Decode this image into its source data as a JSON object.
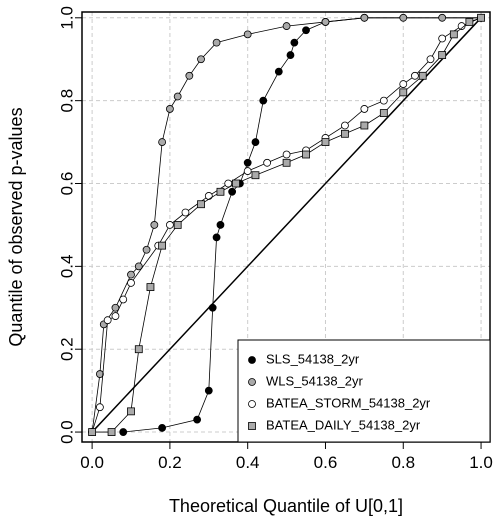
{
  "chart_data": {
    "type": "line",
    "x_label": "Theoretical Quantile of U[0,1]",
    "y_label": "Quantile of observed p-values",
    "xlim": [
      -0.026,
      1.023
    ],
    "ylim": [
      -0.024,
      1.014
    ],
    "xticks": [
      {
        "value": 0,
        "label": "0.0"
      },
      0.2,
      0.4,
      0.6,
      0.8,
      {
        "value": 1,
        "label": "1.0"
      }
    ],
    "yticks": [
      {
        "value": 0,
        "label": "0.0"
      },
      0.2,
      0.4,
      0.6,
      0.8,
      {
        "value": 1,
        "label": "1.0"
      }
    ],
    "grid": true,
    "legend": "bottom-right",
    "reference_line": {
      "x": [
        0,
        1
      ],
      "y": [
        0,
        1
      ]
    },
    "series": [
      {
        "name": "SLS_54138_2yr",
        "color": "#000000",
        "marker": "circle",
        "x": [
          0.08,
          0.18,
          0.27,
          0.3,
          0.31,
          0.32,
          0.33,
          0.36,
          0.38,
          0.4,
          0.42,
          0.44,
          0.48,
          0.51,
          0.52,
          0.55,
          0.6,
          0.7,
          1.0
        ],
        "y": [
          0,
          0.01,
          0.03,
          0.1,
          0.3,
          0.47,
          0.5,
          0.58,
          0.6,
          0.65,
          0.7,
          0.8,
          0.87,
          0.91,
          0.94,
          0.97,
          0.99,
          1.0,
          1.0
        ]
      },
      {
        "name": "WLS_54138_2yr",
        "color": "#aaaaaa",
        "marker": "circle",
        "x": [
          0,
          0.02,
          0.03,
          0.06,
          0.1,
          0.12,
          0.14,
          0.16,
          0.18,
          0.2,
          0.22,
          0.25,
          0.28,
          0.32,
          0.4,
          0.5,
          0.6,
          0.7,
          0.8,
          0.9,
          1.0
        ],
        "y": [
          0,
          0.14,
          0.26,
          0.3,
          0.38,
          0.4,
          0.44,
          0.5,
          0.7,
          0.78,
          0.81,
          0.86,
          0.9,
          0.94,
          0.96,
          0.98,
          0.99,
          1.0,
          1.0,
          1.0,
          1.0
        ]
      },
      {
        "name": "BATEA_STORM_54138_2yr",
        "color": "#ffffff",
        "marker": "circle",
        "x": [
          0,
          0.02,
          0.04,
          0.06,
          0.08,
          0.1,
          0.17,
          0.2,
          0.24,
          0.3,
          0.35,
          0.4,
          0.45,
          0.5,
          0.55,
          0.6,
          0.65,
          0.7,
          0.75,
          0.8,
          0.83,
          0.87,
          0.9,
          0.95,
          1.0
        ],
        "y": [
          0,
          0.06,
          0.27,
          0.28,
          0.32,
          0.36,
          0.45,
          0.5,
          0.53,
          0.57,
          0.6,
          0.63,
          0.65,
          0.67,
          0.68,
          0.71,
          0.74,
          0.78,
          0.8,
          0.84,
          0.86,
          0.9,
          0.95,
          0.98,
          1.0
        ]
      },
      {
        "name": "BATEA_DAILY_54138_2yr",
        "color": "#aaaaaa",
        "marker": "square",
        "x": [
          0,
          0.05,
          0.1,
          0.12,
          0.15,
          0.18,
          0.22,
          0.28,
          0.33,
          0.37,
          0.42,
          0.5,
          0.55,
          0.6,
          0.65,
          0.7,
          0.75,
          0.8,
          0.85,
          0.9,
          0.93,
          0.97,
          1.0
        ],
        "y": [
          0,
          0,
          0.05,
          0.2,
          0.35,
          0.45,
          0.5,
          0.55,
          0.58,
          0.6,
          0.62,
          0.65,
          0.67,
          0.7,
          0.72,
          0.74,
          0.77,
          0.82,
          0.86,
          0.91,
          0.96,
          0.99,
          1.0
        ]
      }
    ]
  }
}
